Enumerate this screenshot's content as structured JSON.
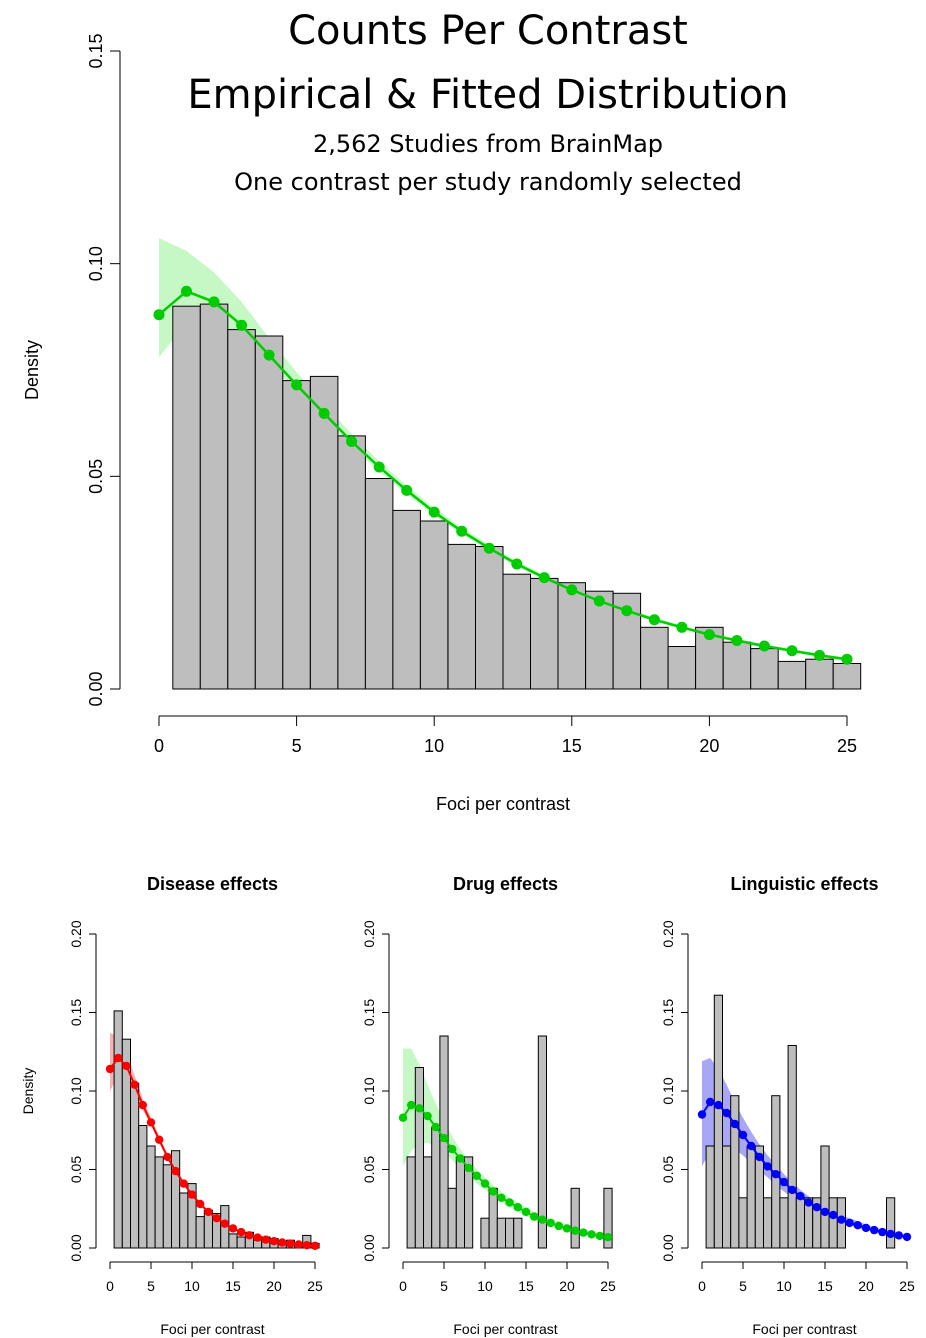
{
  "chart_data": [
    {
      "type": "bar",
      "title": "Counts Per Contrast",
      "title_line2": "Empirical & Fitted Distribution",
      "subtitle": "2,562 Studies from BrainMap",
      "subtitle_line2": "One contrast per study randomly selected",
      "xlabel": "Foci per contrast",
      "ylabel": "Density",
      "xlim": [
        0,
        25
      ],
      "ylim": [
        0,
        0.15
      ],
      "x_ticks": [
        0,
        5,
        10,
        15,
        20,
        25
      ],
      "x_tick_labels": [
        "0",
        "5",
        "10",
        "15",
        "20",
        "25"
      ],
      "y_ticks": [
        0,
        0.05,
        0.1,
        0.15
      ],
      "y_tick_labels": [
        "0.00",
        "0.05",
        "0.10",
        "0.15"
      ],
      "fit_color": "#00cc00",
      "band_color": "#b3f5b3",
      "bar_color": "#bebebe",
      "bins": [
        1,
        2,
        3,
        4,
        5,
        6,
        7,
        8,
        9,
        10,
        11,
        12,
        13,
        14,
        15,
        16,
        17,
        18,
        19,
        20,
        21,
        22,
        23,
        24,
        25
      ],
      "values": [
        0.09,
        0.0905,
        0.0845,
        0.083,
        0.0725,
        0.0735,
        0.0595,
        0.0495,
        0.042,
        0.0395,
        0.034,
        0.0335,
        0.027,
        0.026,
        0.025,
        0.023,
        0.0225,
        0.0145,
        0.01,
        0.0145,
        0.011,
        0.0095,
        0.0065,
        0.007,
        0.006
      ],
      "fit_x": [
        0,
        1,
        2,
        3,
        4,
        5,
        6,
        7,
        8,
        9,
        10,
        11,
        12,
        13,
        14,
        15,
        16,
        17,
        18,
        19,
        20,
        21,
        22,
        23,
        24,
        25
      ],
      "fit_y": [
        0.088,
        0.0935,
        0.091,
        0.0855,
        0.0785,
        0.0715,
        0.0648,
        0.0582,
        0.0522,
        0.0467,
        0.0416,
        0.0371,
        0.0331,
        0.0294,
        0.0262,
        0.0233,
        0.0207,
        0.0184,
        0.0163,
        0.0145,
        0.0128,
        0.0114,
        0.0101,
        0.009,
        0.0079,
        0.007
      ],
      "band_lo": [
        0.078,
        0.086,
        0.086,
        0.083,
        0.0765,
        0.07,
        0.0635,
        0.057,
        0.0512,
        0.0458,
        0.0408,
        0.0364,
        0.0324,
        0.0288,
        0.0256,
        0.0228,
        0.0202,
        0.0179,
        0.0159,
        0.0141,
        0.0124,
        0.011,
        0.0097,
        0.0086,
        0.0075,
        0.0066
      ],
      "band_hi": [
        0.106,
        0.103,
        0.098,
        0.091,
        0.0825,
        0.0745,
        0.067,
        0.06,
        0.0535,
        0.0478,
        0.0426,
        0.038,
        0.0339,
        0.0301,
        0.0268,
        0.0239,
        0.0212,
        0.0189,
        0.0168,
        0.0149,
        0.0132,
        0.0118,
        0.0105,
        0.0094,
        0.0083,
        0.0074
      ]
    },
    {
      "type": "bar",
      "title": "Disease effects",
      "xlabel": "Foci per contrast",
      "ylabel": "Density",
      "xlim": [
        0,
        25
      ],
      "ylim": [
        0,
        0.2
      ],
      "x_ticks": [
        0,
        5,
        10,
        15,
        20,
        25
      ],
      "x_tick_labels": [
        "0",
        "5",
        "10",
        "15",
        "20",
        "25"
      ],
      "y_ticks": [
        0,
        0.05,
        0.1,
        0.15,
        0.2
      ],
      "y_tick_labels": [
        "0.00",
        "0.05",
        "0.10",
        "0.15",
        "0.20"
      ],
      "fit_color": "#ff0000",
      "band_color": "#f29a9a",
      "bar_color": "#bebebe",
      "bins": [
        1,
        2,
        3,
        4,
        5,
        6,
        7,
        8,
        9,
        10,
        11,
        12,
        13,
        14,
        15,
        16,
        17,
        18,
        19,
        20,
        21,
        22,
        23,
        24,
        25
      ],
      "values": [
        0.151,
        0.133,
        0.105,
        0.078,
        0.065,
        0.058,
        0.053,
        0.062,
        0.035,
        0.041,
        0.02,
        0.024,
        0.022,
        0.027,
        0.009,
        0.007,
        0.01,
        0.005,
        0.007,
        0.006,
        0.004,
        0.005,
        0.003,
        0.008,
        0.003
      ],
      "fit_x": [
        0,
        1,
        2,
        3,
        4,
        5,
        6,
        7,
        8,
        9,
        10,
        11,
        12,
        13,
        14,
        15,
        16,
        17,
        18,
        19,
        20,
        21,
        22,
        23,
        24,
        25
      ],
      "fit_y": [
        0.114,
        0.121,
        0.116,
        0.104,
        0.091,
        0.08,
        0.069,
        0.058,
        0.049,
        0.041,
        0.034,
        0.028,
        0.023,
        0.019,
        0.0155,
        0.0125,
        0.0101,
        0.0081,
        0.0066,
        0.0053,
        0.0043,
        0.0035,
        0.0028,
        0.0022,
        0.0018,
        0.0014
      ],
      "band_lo": [
        0.1,
        0.11,
        0.109,
        0.099,
        0.088,
        0.078,
        0.067,
        0.057,
        0.048,
        0.04,
        0.033,
        0.027,
        0.022,
        0.018,
        0.0148,
        0.0119,
        0.0096,
        0.0077,
        0.0062,
        0.005,
        0.004,
        0.0032,
        0.0026,
        0.002,
        0.0016,
        0.0012
      ],
      "band_hi": [
        0.137,
        0.135,
        0.125,
        0.11,
        0.095,
        0.083,
        0.071,
        0.06,
        0.051,
        0.042,
        0.035,
        0.029,
        0.024,
        0.02,
        0.0163,
        0.0132,
        0.0107,
        0.0086,
        0.007,
        0.0057,
        0.0046,
        0.0038,
        0.003,
        0.0024,
        0.002,
        0.0016
      ]
    },
    {
      "type": "bar",
      "title": "Drug effects",
      "xlabel": "Foci per contrast",
      "ylabel": "",
      "xlim": [
        0,
        25
      ],
      "ylim": [
        0,
        0.2
      ],
      "x_ticks": [
        0,
        5,
        10,
        15,
        20,
        25
      ],
      "x_tick_labels": [
        "0",
        "5",
        "10",
        "15",
        "20",
        "25"
      ],
      "y_ticks": [
        0,
        0.05,
        0.1,
        0.15,
        0.2
      ],
      "y_tick_labels": [
        "0.00",
        "0.05",
        "0.10",
        "0.15",
        "0.20"
      ],
      "fit_color": "#00cc00",
      "band_color": "#b3f5b3",
      "bar_color": "#bebebe",
      "bins": [
        1,
        2,
        3,
        4,
        5,
        6,
        7,
        8,
        9,
        10,
        11,
        12,
        13,
        14,
        15,
        16,
        17,
        18,
        19,
        20,
        21,
        22,
        23,
        24,
        25
      ],
      "values": [
        0.058,
        0.115,
        0.058,
        0.077,
        0.135,
        0.038,
        0.058,
        0.058,
        0,
        0.019,
        0.038,
        0.019,
        0.019,
        0.019,
        0,
        0,
        0.135,
        0,
        0,
        0,
        0.038,
        0,
        0,
        0,
        0.038
      ],
      "fit_x": [
        0,
        1,
        2,
        3,
        4,
        5,
        6,
        7,
        8,
        9,
        10,
        11,
        12,
        13,
        14,
        15,
        16,
        17,
        18,
        19,
        20,
        21,
        22,
        23,
        24,
        25
      ],
      "fit_y": [
        0.083,
        0.091,
        0.089,
        0.084,
        0.077,
        0.07,
        0.063,
        0.057,
        0.051,
        0.046,
        0.041,
        0.036,
        0.032,
        0.029,
        0.026,
        0.023,
        0.02,
        0.018,
        0.016,
        0.014,
        0.0125,
        0.011,
        0.0098,
        0.0087,
        0.0077,
        0.0069
      ],
      "band_lo": [
        0.052,
        0.062,
        0.066,
        0.067,
        0.065,
        0.061,
        0.056,
        0.051,
        0.046,
        0.041,
        0.037,
        0.033,
        0.029,
        0.026,
        0.023,
        0.02,
        0.018,
        0.016,
        0.014,
        0.0125,
        0.011,
        0.0097,
        0.0085,
        0.0075,
        0.0066,
        0.0058
      ],
      "band_hi": [
        0.127,
        0.127,
        0.117,
        0.104,
        0.092,
        0.081,
        0.071,
        0.063,
        0.056,
        0.05,
        0.045,
        0.04,
        0.036,
        0.032,
        0.029,
        0.026,
        0.023,
        0.021,
        0.019,
        0.017,
        0.015,
        0.0133,
        0.0118,
        0.0105,
        0.0093,
        0.0083
      ]
    },
    {
      "type": "bar",
      "title": "Linguistic effects",
      "xlabel": "Foci per contrast",
      "ylabel": "",
      "xlim": [
        0,
        25
      ],
      "ylim": [
        0,
        0.2
      ],
      "x_ticks": [
        0,
        5,
        10,
        15,
        20,
        25
      ],
      "x_tick_labels": [
        "0",
        "5",
        "10",
        "15",
        "20",
        "25"
      ],
      "y_ticks": [
        0,
        0.05,
        0.1,
        0.15,
        0.2
      ],
      "y_tick_labels": [
        "0.00",
        "0.05",
        "0.10",
        "0.15",
        "0.20"
      ],
      "fit_color": "#0000ff",
      "band_color": "#8a8af2",
      "bar_color": "#bebebe",
      "bins": [
        1,
        2,
        3,
        4,
        5,
        6,
        7,
        8,
        9,
        10,
        11,
        12,
        13,
        14,
        15,
        16,
        17,
        18,
        19,
        20,
        21,
        22,
        23,
        24,
        25
      ],
      "values": [
        0.065,
        0.161,
        0.065,
        0.097,
        0.032,
        0.065,
        0.065,
        0.032,
        0.097,
        0.032,
        0.129,
        0.032,
        0.032,
        0.032,
        0.065,
        0.032,
        0.032,
        0,
        0,
        0,
        0,
        0,
        0.032,
        0,
        0
      ],
      "fit_x": [
        0,
        1,
        2,
        3,
        4,
        5,
        6,
        7,
        8,
        9,
        10,
        11,
        12,
        13,
        14,
        15,
        16,
        17,
        18,
        19,
        20,
        21,
        22,
        23,
        24,
        25
      ],
      "fit_y": [
        0.085,
        0.093,
        0.091,
        0.086,
        0.079,
        0.072,
        0.065,
        0.058,
        0.052,
        0.047,
        0.042,
        0.037,
        0.033,
        0.029,
        0.026,
        0.023,
        0.021,
        0.018,
        0.016,
        0.0145,
        0.0128,
        0.0114,
        0.0101,
        0.009,
        0.008,
        0.0071
      ],
      "band_lo": [
        0.052,
        0.062,
        0.065,
        0.065,
        0.063,
        0.059,
        0.054,
        0.049,
        0.045,
        0.04,
        0.036,
        0.032,
        0.029,
        0.026,
        0.023,
        0.021,
        0.018,
        0.016,
        0.0145,
        0.013,
        0.0115,
        0.0102,
        0.009,
        0.008,
        0.0071,
        0.0063
      ],
      "band_hi": [
        0.119,
        0.121,
        0.114,
        0.104,
        0.093,
        0.083,
        0.074,
        0.066,
        0.059,
        0.053,
        0.047,
        0.042,
        0.037,
        0.033,
        0.029,
        0.026,
        0.023,
        0.021,
        0.019,
        0.017,
        0.015,
        0.0133,
        0.0118,
        0.0105,
        0.0093,
        0.0083
      ]
    }
  ]
}
